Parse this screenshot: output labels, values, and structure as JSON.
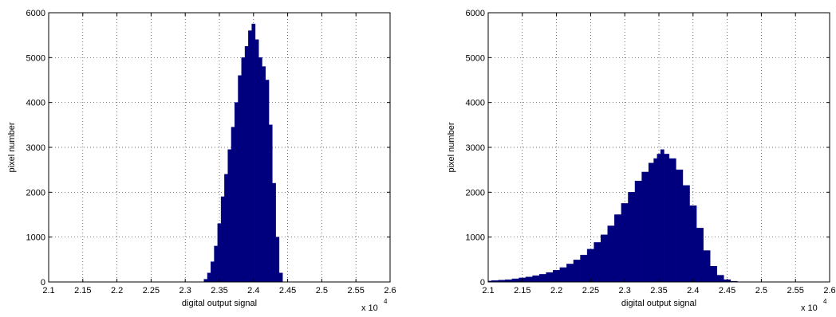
{
  "chart_data": [
    {
      "type": "bar",
      "title": "",
      "xlabel": "digital output signal",
      "ylabel": "pixel number",
      "xlim": [
        21000,
        26000
      ],
      "ylim": [
        0,
        6000
      ],
      "x_multiplier": "x 10",
      "x_multiplier_exponent": "4",
      "x_tick_labels": [
        "2.1",
        "2.15",
        "2.2",
        "2.25",
        "2.3",
        "2.35",
        "2.4",
        "2.45",
        "2.5",
        "2.55",
        "2.6"
      ],
      "y_tick_labels": [
        "0",
        "1000",
        "2000",
        "3000",
        "4000",
        "5000",
        "6000"
      ],
      "grid": true,
      "bar_color": "#00007f",
      "bin_centers": [
        23250,
        23300,
        23350,
        23400,
        23450,
        23500,
        23550,
        23600,
        23650,
        23700,
        23750,
        23800,
        23850,
        23900,
        23950,
        24000,
        24050,
        24100,
        24150,
        24200,
        24250,
        24300,
        24350,
        24400,
        24450
      ],
      "values": [
        0,
        60,
        200,
        450,
        800,
        1300,
        1900,
        2400,
        2950,
        3450,
        4000,
        4600,
        5000,
        5250,
        5600,
        5750,
        5400,
        5000,
        4800,
        4500,
        3500,
        2200,
        1000,
        200,
        0
      ]
    },
    {
      "type": "bar",
      "title": "",
      "xlabel": "digital output signal",
      "ylabel": "pixel number",
      "xlim": [
        21000,
        26000
      ],
      "ylim": [
        0,
        6000
      ],
      "x_multiplier": "x 10",
      "x_multiplier_exponent": "4",
      "x_tick_labels": [
        "2.1",
        "2.15",
        "2.2",
        "2.25",
        "2.3",
        "2.35",
        "2.4",
        "2.45",
        "2.5",
        "2.55",
        "2.6"
      ],
      "y_tick_labels": [
        "0",
        "1000",
        "2000",
        "3000",
        "4000",
        "5000",
        "6000"
      ],
      "grid": true,
      "bar_color": "#00007f",
      "bin_centers": [
        21000,
        21100,
        21200,
        21300,
        21400,
        21500,
        21600,
        21700,
        21800,
        21900,
        22000,
        22100,
        22200,
        22300,
        22400,
        22500,
        22600,
        22700,
        22800,
        22900,
        23000,
        23100,
        23200,
        23300,
        23400,
        23450,
        23500,
        23550,
        23600,
        23700,
        23800,
        23900,
        24000,
        24100,
        24200,
        24300,
        24400,
        24500,
        24600,
        24700
      ],
      "values": [
        20,
        30,
        40,
        50,
        70,
        90,
        110,
        140,
        170,
        210,
        260,
        320,
        400,
        490,
        600,
        730,
        880,
        1050,
        1250,
        1500,
        1750,
        2000,
        2250,
        2450,
        2650,
        2750,
        2850,
        2950,
        2850,
        2750,
        2500,
        2150,
        1700,
        1200,
        700,
        350,
        150,
        50,
        15,
        0
      ]
    }
  ]
}
